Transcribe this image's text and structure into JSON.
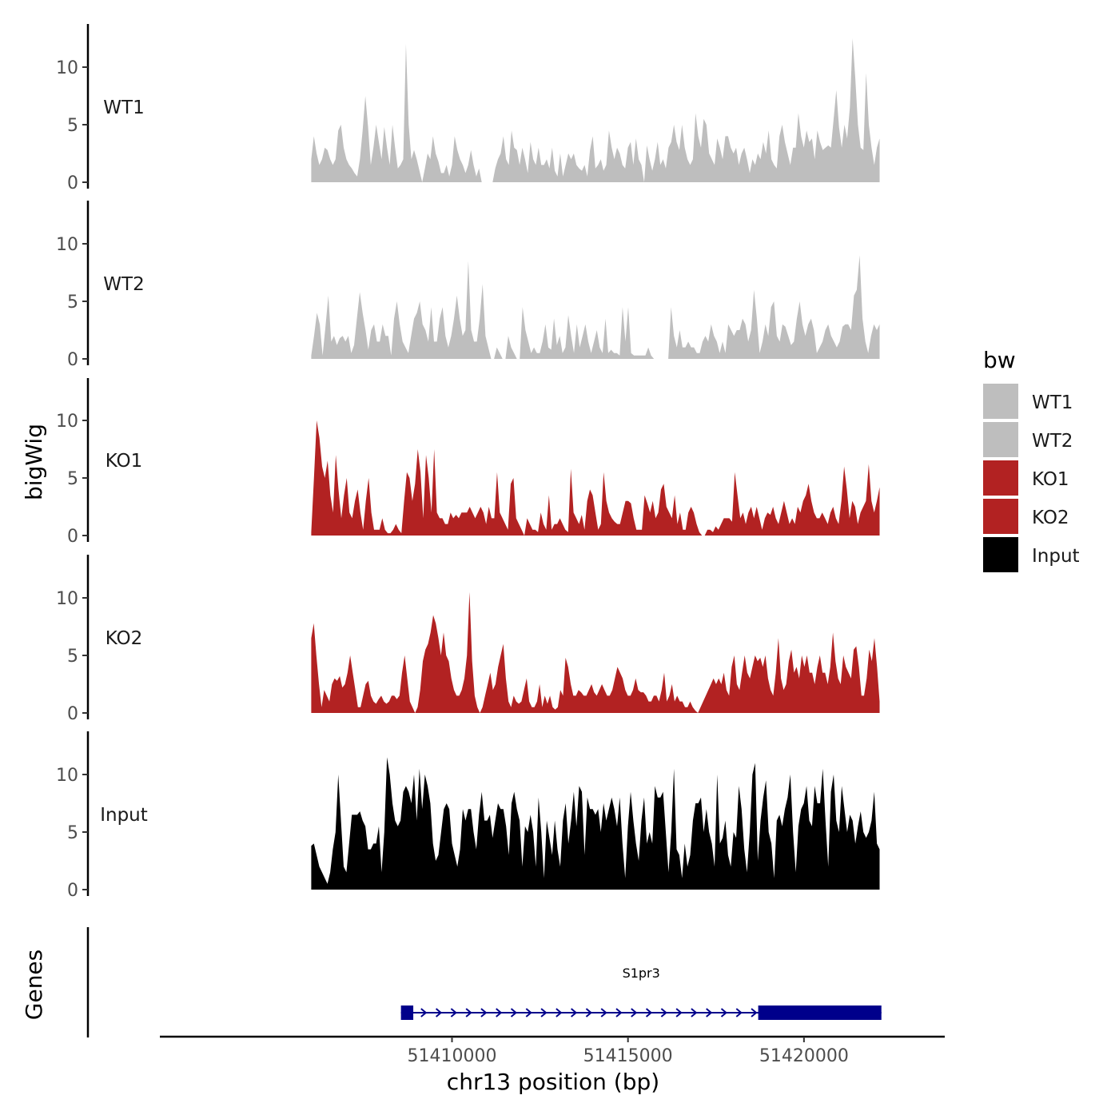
{
  "chart_data": {
    "type": "area",
    "title": "",
    "ylabel": "bigWig",
    "xlabel": "chr13 position (bp)",
    "xlim": [
      51401700,
      51424000
    ],
    "ylim": [
      0,
      13.5
    ],
    "y_ticks": [
      0,
      5,
      10
    ],
    "x_ticks": [
      51410000,
      51415000,
      51420000
    ],
    "x_tick_labels": [
      "51410000",
      "51415000",
      "51420000"
    ],
    "data_start": 51406000,
    "data_end": 51422150,
    "legend": {
      "title": "bw",
      "position": "right",
      "entries": [
        {
          "label": "WT1",
          "color": "#bebebe"
        },
        {
          "label": "WT2",
          "color": "#bebebe"
        },
        {
          "label": "KO1",
          "color": "#b22222"
        },
        {
          "label": "KO2",
          "color": "#b22222"
        },
        {
          "label": "Input",
          "color": "#000000"
        }
      ]
    },
    "series": [
      {
        "name": "WT1",
        "color": "#bebebe",
        "values": [
          2,
          4,
          2.5,
          1.5,
          2,
          3,
          2.8,
          2,
          1.5,
          2,
          4.5,
          5,
          3,
          2,
          1.5,
          1.2,
          0.8,
          0.5,
          2,
          4.5,
          7.5,
          4.8,
          1.5,
          3,
          5,
          3.5,
          2,
          4.8,
          3,
          1.5,
          5,
          3,
          1.2,
          1.5,
          2,
          12,
          5,
          2,
          2.8,
          2,
          1,
          0,
          1.2,
          2.5,
          2,
          4,
          2.5,
          1.8,
          0.8,
          0.8,
          1.5,
          0.5,
          1.5,
          4,
          2.8,
          2,
          1.5,
          0.8,
          1.5,
          2.8,
          1.5,
          0.5,
          1.2,
          0,
          0,
          0,
          0,
          0,
          1.2,
          2,
          2.5,
          4,
          2,
          1.5,
          4.5,
          3,
          2.8,
          1.5,
          3,
          2,
          0.8,
          3.5,
          2,
          1.5,
          3,
          1.5,
          1.5,
          2,
          1.2,
          3,
          1,
          0.5,
          2.5,
          0.5,
          1.5,
          2.5,
          2,
          2.5,
          1.5,
          1.2,
          1,
          1.5,
          0.5,
          2.8,
          4,
          1.2,
          1.5,
          2,
          1,
          1.5,
          4.5,
          3,
          2,
          3,
          2.5,
          1.5,
          1.2,
          3,
          3.5,
          1.5,
          3.8,
          2,
          1.5,
          0,
          3.2,
          2,
          1,
          2,
          3.5,
          1.5,
          2,
          1.2,
          3,
          3.5,
          5,
          3.5,
          2.8,
          5,
          3,
          2,
          1.5,
          2,
          6,
          4,
          3,
          5.5,
          5,
          2.5,
          2,
          1.5,
          3.8,
          3,
          2,
          4,
          4,
          3,
          2.5,
          3,
          1.5,
          2.5,
          3,
          2,
          0.8,
          2,
          1.5,
          2.5,
          2,
          3.5,
          2.5,
          4.5,
          2,
          1.5,
          1.2,
          4,
          5,
          3.5,
          2.5,
          1.5,
          3,
          3,
          6,
          4,
          3,
          4.5,
          3.5,
          3.8,
          2,
          4.5,
          3.5,
          2.8,
          3,
          3.2,
          3,
          5.5,
          8,
          4.8,
          3,
          5,
          3.8,
          6.5,
          12.5,
          9,
          5,
          3,
          2.8,
          9.5,
          5,
          3,
          1.5,
          3,
          3.8
        ]
      },
      {
        "name": "WT2",
        "color": "#bebebe",
        "values": [
          0.3,
          2,
          4,
          3,
          0.3,
          2.8,
          5.5,
          1.5,
          2,
          1.2,
          1.8,
          2,
          1.5,
          2,
          0.5,
          1.2,
          3.5,
          5.8,
          4,
          2.5,
          0.8,
          2.5,
          3,
          1.5,
          1.5,
          3,
          2,
          2,
          0.3,
          3.5,
          5,
          3,
          1.5,
          1,
          0.5,
          2,
          3.5,
          4,
          5,
          3,
          2.5,
          1.5,
          4.5,
          1.5,
          1.5,
          3.5,
          4.5,
          2,
          1,
          2,
          3.5,
          5.5,
          3.5,
          2,
          2.5,
          8.5,
          2.5,
          1.5,
          1.5,
          3.5,
          6.5,
          2,
          1,
          0,
          0,
          1,
          0.5,
          0,
          0,
          2,
          1,
          0.5,
          0,
          0,
          4.5,
          2.5,
          1.5,
          0.5,
          1,
          0.5,
          0.5,
          1.5,
          3,
          1,
          0.8,
          3.5,
          1.2,
          2,
          0.5,
          1,
          3.8,
          2,
          0.5,
          3,
          1,
          2,
          3,
          1.5,
          0.5,
          1.5,
          2.5,
          1,
          0.5,
          3.5,
          0.5,
          0.8,
          0.5,
          0.5,
          0.3,
          4.5,
          1.5,
          4.5,
          0.5,
          0.3,
          0.3,
          0.3,
          0.3,
          0.3,
          1,
          0.3,
          0,
          0,
          0,
          0,
          0,
          0,
          4.5,
          2,
          1,
          2.5,
          1,
          1,
          1.5,
          1,
          1,
          0.5,
          0.5,
          1.5,
          2,
          1.5,
          3,
          2,
          1.5,
          0.5,
          1.5,
          0.5,
          3,
          2.5,
          2,
          2.5,
          2.5,
          3.5,
          3,
          1.5,
          2.5,
          6,
          3.5,
          0.5,
          1.5,
          3,
          2,
          4.5,
          5,
          2,
          1.5,
          3,
          2.8,
          2,
          1.2,
          1.5,
          3.5,
          5,
          3,
          2,
          3,
          3.5,
          2.5,
          0.5,
          1,
          1.5,
          2.5,
          3,
          2,
          1.5,
          1,
          1.5,
          2.8,
          3,
          3,
          2.5,
          5.5,
          6,
          9,
          3.5,
          1.5,
          0.5,
          2,
          3,
          2.5,
          3
        ]
      },
      {
        "name": "KO1",
        "color": "#b22222",
        "values": [
          0.3,
          5,
          10,
          8.5,
          6,
          5,
          6.5,
          3.5,
          2,
          7,
          4,
          1.5,
          3.5,
          5,
          2,
          1.5,
          3,
          4,
          2,
          0.5,
          3,
          5,
          2,
          0.5,
          0.5,
          0.5,
          1.5,
          0.5,
          0.2,
          0.2,
          0.5,
          1,
          0.5,
          0.2,
          3,
          5.5,
          5,
          3,
          4.5,
          7.5,
          5.5,
          1.5,
          7,
          5,
          2,
          7.5,
          2,
          1.5,
          1.5,
          1,
          1,
          2,
          1.5,
          1.8,
          1.5,
          2,
          2,
          2,
          2.5,
          2,
          1.5,
          2,
          2.5,
          2,
          1,
          2.5,
          1.5,
          1.5,
          5.5,
          2,
          1.5,
          1,
          0.5,
          4.5,
          5,
          1.5,
          1,
          0.5,
          0,
          1.5,
          1,
          0.5,
          0.5,
          0.3,
          2,
          1,
          0.5,
          3.5,
          0.5,
          1,
          1,
          1.5,
          1,
          0.5,
          0.3,
          5.8,
          2,
          1.5,
          1,
          1.8,
          0.5,
          3,
          4,
          3.5,
          2,
          0.5,
          1,
          5.5,
          3,
          2,
          1.5,
          1.2,
          1,
          1,
          2,
          3,
          3,
          2.8,
          1.5,
          0.5,
          0.5,
          0.5,
          3.5,
          2.8,
          2,
          3,
          1.5,
          2,
          4,
          4.5,
          2.5,
          2,
          1.5,
          3.5,
          1,
          2,
          0.5,
          0.5,
          2,
          2.5,
          2,
          1,
          0.3,
          0,
          0,
          0.5,
          0.5,
          0.3,
          0.8,
          0.5,
          1,
          1.5,
          1.5,
          1.5,
          1.2,
          5.5,
          3.5,
          1.5,
          2,
          1,
          2,
          2.5,
          1.5,
          2.5,
          1.5,
          0.5,
          1.5,
          2,
          1.8,
          2.5,
          1.5,
          1,
          2,
          3,
          2,
          1,
          1.5,
          1,
          2.5,
          2,
          3,
          3.5,
          4.5,
          3,
          2,
          1.5,
          1.5,
          2,
          1.5,
          1,
          2,
          2.5,
          1.5,
          1,
          3,
          6,
          4,
          1.5,
          3,
          2.5,
          1,
          2,
          2.5,
          3,
          6.2,
          3,
          2,
          3,
          4.2
        ]
      },
      {
        "name": "KO2",
        "color": "#b22222",
        "values": [
          6.5,
          7.8,
          5,
          2.5,
          0.5,
          2,
          1.5,
          1,
          2.5,
          3,
          2.8,
          3.2,
          2.2,
          2.5,
          3.5,
          5,
          3.5,
          2,
          0.5,
          0.5,
          1.5,
          2.5,
          2.8,
          1.5,
          1,
          0.8,
          1.2,
          1.5,
          1,
          0.8,
          1,
          1.5,
          1.5,
          1.2,
          1.5,
          3.5,
          5,
          3,
          1,
          0.5,
          0,
          0.5,
          2,
          4.5,
          5.5,
          6,
          7,
          8.5,
          7.8,
          6.5,
          5,
          7,
          5,
          4.5,
          3,
          2,
          1.5,
          1.5,
          2,
          3,
          5,
          10.5,
          4.5,
          1.5,
          0.5,
          0,
          0.5,
          1.5,
          2.5,
          3.5,
          2,
          2.5,
          4,
          5,
          6,
          3,
          1,
          0.5,
          1.5,
          1,
          0.8,
          1,
          2,
          3,
          1,
          0.5,
          0.5,
          1,
          2.5,
          0.5,
          1.5,
          0.8,
          1.5,
          0.5,
          0.3,
          0.5,
          2,
          1.5,
          4.8,
          4,
          2.5,
          1.5,
          1.5,
          2,
          1.8,
          1.5,
          1.5,
          2,
          2.5,
          1.8,
          1.5,
          2,
          2.5,
          2,
          1.5,
          1.5,
          2,
          3,
          4,
          3.5,
          3,
          2,
          1.5,
          1.5,
          2,
          3,
          2,
          1.8,
          1.8,
          1.5,
          1,
          1,
          1.5,
          1.5,
          1,
          2,
          3.5,
          1,
          1.5,
          2.5,
          1,
          1.5,
          1,
          1,
          0.5,
          0.5,
          1,
          0.5,
          0.2,
          0,
          0.5,
          1,
          1.5,
          2,
          2.5,
          3,
          2.5,
          3,
          2.5,
          3.5,
          2,
          1.5,
          4,
          5,
          2.5,
          2,
          3.5,
          5,
          3.5,
          3,
          4,
          5,
          4.5,
          4.8,
          4,
          5,
          3,
          2,
          1.5,
          3.5,
          6.5,
          3,
          2,
          2.5,
          4.5,
          5.5,
          3.5,
          4,
          3,
          5,
          4,
          5,
          3.5,
          3.5,
          2.5,
          4,
          5,
          3.5,
          3.5,
          2.5,
          4,
          7,
          4.5,
          3,
          2.5,
          5,
          4,
          3.5,
          3,
          5.5,
          5.8,
          4,
          1.5,
          1.5,
          3,
          5.5,
          4.5,
          6.5,
          4,
          1
        ]
      },
      {
        "name": "Input",
        "color": "#000000",
        "values": [
          3.8,
          4,
          3,
          2,
          1.5,
          1,
          0.5,
          1.5,
          3.5,
          5,
          10,
          6,
          2,
          1.5,
          4,
          6.5,
          6.5,
          6.5,
          6.8,
          6,
          5.5,
          3.5,
          3.5,
          4,
          4,
          5.5,
          1.5,
          5,
          11.5,
          10,
          7.5,
          6,
          5.5,
          6,
          8.5,
          9,
          8.5,
          7.5,
          10,
          6,
          10.5,
          7,
          10,
          9,
          7.5,
          4,
          2.5,
          3,
          5,
          7,
          7.5,
          7,
          4,
          3,
          2,
          3.5,
          7,
          6,
          7,
          7,
          5,
          3.5,
          6.5,
          8.5,
          6,
          6,
          6.5,
          4.5,
          6,
          7.5,
          7,
          7,
          5.5,
          3,
          7.5,
          8.5,
          7,
          6,
          2,
          5.5,
          5,
          6.5,
          5,
          2,
          8,
          5,
          1,
          6,
          4.5,
          3,
          6,
          3.5,
          2,
          6,
          7.5,
          4,
          6,
          8.5,
          5.5,
          9,
          8.5,
          3,
          8,
          7,
          7,
          6.5,
          7,
          5,
          7.5,
          6,
          7,
          8,
          7,
          5.5,
          8,
          4,
          1,
          5.5,
          8.5,
          6,
          4,
          2.5,
          6,
          8,
          4,
          5,
          4,
          9,
          8,
          8,
          8.5,
          5,
          1.5,
          5,
          10.5,
          3.5,
          3,
          1,
          4,
          2,
          3,
          6,
          7.5,
          7.5,
          8,
          5,
          7,
          5,
          4,
          2,
          10,
          4,
          4.5,
          6,
          3,
          2,
          5,
          4.5,
          9,
          7,
          3.5,
          1.5,
          5,
          10,
          11,
          2.5,
          6,
          8,
          9.5,
          5,
          4,
          1,
          6,
          6.5,
          5.5,
          7,
          8,
          10,
          5,
          1.5,
          5.5,
          7,
          7.5,
          9,
          6,
          5.5,
          9,
          7.5,
          7.5,
          10.5,
          6,
          2,
          8.5,
          10,
          6,
          5,
          9,
          7,
          5,
          6.5,
          6,
          4,
          5.5,
          6.8,
          5,
          4.5,
          5,
          6,
          8.5,
          4,
          3.5
        ]
      }
    ],
    "genes_panel": {
      "ylabel": "Genes",
      "gene": {
        "name": "S1pr3",
        "start": 51408550,
        "end": 51422200,
        "strand": "+",
        "exons": [
          [
            51408550,
            51408900
          ],
          [
            51418700,
            51422200
          ]
        ],
        "color": "#00008b"
      }
    }
  }
}
